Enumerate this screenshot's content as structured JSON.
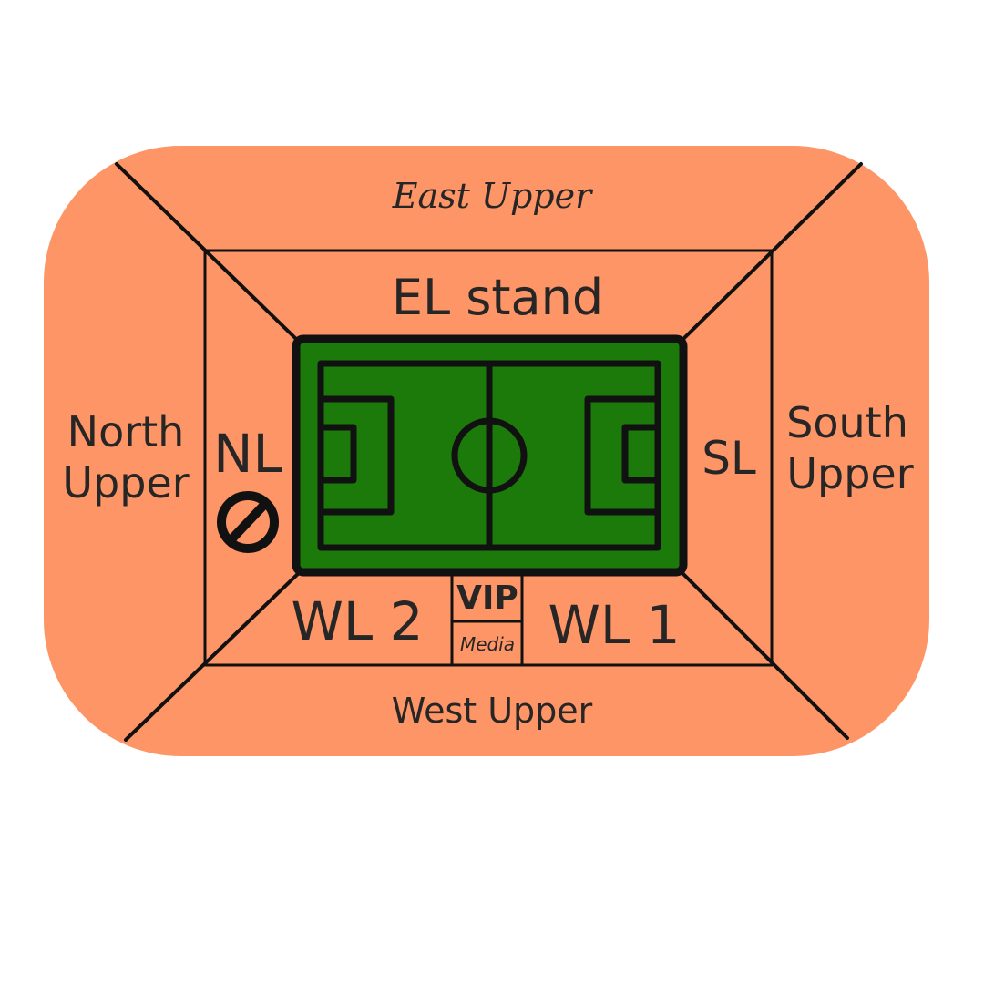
{
  "stands": {
    "east_upper": "East Upper",
    "el_stand": "EL stand",
    "north_upper_line1": "North",
    "north_upper_line2": "Upper",
    "nl": "NL",
    "south_upper_line1": "South",
    "south_upper_line2": "Upper",
    "sl": "SL",
    "wl2": "WL 2",
    "vip": "VIP",
    "media": "Media",
    "wl1": "WL 1",
    "west_upper": "West Upper"
  },
  "icons": {
    "closed_section": "no-entry-icon"
  },
  "colors": {
    "seating": "#fe9566",
    "pitch": "#1c7a0a",
    "lines": "#111111",
    "text": "#262626",
    "background": "#ffffff"
  }
}
